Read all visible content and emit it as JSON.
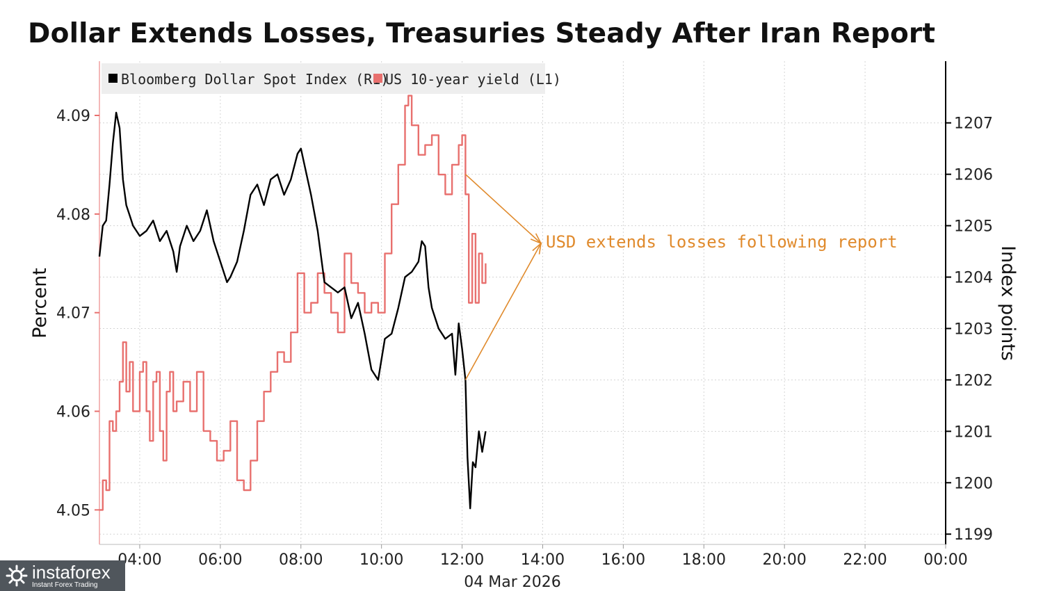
{
  "title": "Dollar Extends Losses, Treasuries Steady After Iran Report",
  "watermark": {
    "name": "instaforex",
    "tagline": "Instant Forex Trading"
  },
  "chart_data": {
    "type": "line",
    "title": "Dollar Extends Losses, Treasuries Steady After Iran Report",
    "xlabel": "04 Mar 2026",
    "x_ticks": [
      "04:00",
      "06:00",
      "08:00",
      "10:00",
      "12:00",
      "14:00",
      "16:00",
      "18:00",
      "20:00",
      "22:00",
      "00:00"
    ],
    "x_range": [
      "03:00",
      "00:00"
    ],
    "left_axis": {
      "label": "Percent",
      "ticks": [
        "4.05",
        "4.06",
        "4.07",
        "4.08",
        "4.09"
      ],
      "range": [
        4.0465,
        4.0955
      ]
    },
    "right_axis": {
      "label": "Index points",
      "ticks": [
        "1199",
        "1200",
        "1201",
        "1202",
        "1203",
        "1204",
        "1205",
        "1206",
        "1207"
      ],
      "range": [
        1198.8,
        1208.2
      ]
    },
    "grid": true,
    "legend_position": "top-left",
    "series": [
      {
        "name": "Bloomberg Dollar Spot Index (R1)",
        "axis": "right",
        "color": "#000000",
        "points": [
          [
            "03:00",
            1204.4
          ],
          [
            "03:05",
            1205.0
          ],
          [
            "03:10",
            1205.1
          ],
          [
            "03:15",
            1205.8
          ],
          [
            "03:20",
            1206.6
          ],
          [
            "03:25",
            1207.2
          ],
          [
            "03:30",
            1206.9
          ],
          [
            "03:35",
            1205.9
          ],
          [
            "03:40",
            1205.4
          ],
          [
            "03:45",
            1205.2
          ],
          [
            "03:50",
            1205.0
          ],
          [
            "04:00",
            1204.8
          ],
          [
            "04:10",
            1204.9
          ],
          [
            "04:20",
            1205.1
          ],
          [
            "04:30",
            1204.7
          ],
          [
            "04:40",
            1204.9
          ],
          [
            "04:50",
            1204.5
          ],
          [
            "04:55",
            1204.1
          ],
          [
            "05:00",
            1204.6
          ],
          [
            "05:10",
            1205.0
          ],
          [
            "05:20",
            1204.7
          ],
          [
            "05:30",
            1204.9
          ],
          [
            "05:40",
            1205.3
          ],
          [
            "05:50",
            1204.7
          ],
          [
            "06:00",
            1204.3
          ],
          [
            "06:10",
            1203.9
          ],
          [
            "06:15",
            1204.0
          ],
          [
            "06:25",
            1204.3
          ],
          [
            "06:35",
            1204.9
          ],
          [
            "06:45",
            1205.6
          ],
          [
            "06:55",
            1205.8
          ],
          [
            "07:05",
            1205.4
          ],
          [
            "07:15",
            1205.9
          ],
          [
            "07:25",
            1206.0
          ],
          [
            "07:35",
            1205.6
          ],
          [
            "07:45",
            1205.9
          ],
          [
            "07:55",
            1206.4
          ],
          [
            "08:00",
            1206.5
          ],
          [
            "08:05",
            1206.2
          ],
          [
            "08:15",
            1205.6
          ],
          [
            "08:25",
            1204.9
          ],
          [
            "08:35",
            1203.9
          ],
          [
            "08:45",
            1203.8
          ],
          [
            "08:55",
            1203.7
          ],
          [
            "09:05",
            1203.8
          ],
          [
            "09:15",
            1203.2
          ],
          [
            "09:25",
            1203.5
          ],
          [
            "09:35",
            1202.9
          ],
          [
            "09:45",
            1202.2
          ],
          [
            "09:55",
            1202.0
          ],
          [
            "10:05",
            1202.8
          ],
          [
            "10:15",
            1202.9
          ],
          [
            "10:25",
            1203.4
          ],
          [
            "10:35",
            1204.0
          ],
          [
            "10:45",
            1204.1
          ],
          [
            "10:55",
            1204.3
          ],
          [
            "11:00",
            1204.7
          ],
          [
            "11:05",
            1204.6
          ],
          [
            "11:10",
            1203.8
          ],
          [
            "11:15",
            1203.4
          ],
          [
            "11:25",
            1203.0
          ],
          [
            "11:35",
            1202.8
          ],
          [
            "11:45",
            1202.9
          ],
          [
            "11:50",
            1202.1
          ],
          [
            "11:55",
            1203.1
          ],
          [
            "12:00",
            1202.6
          ],
          [
            "12:05",
            1202.0
          ],
          [
            "12:08",
            1200.5
          ],
          [
            "12:12",
            1199.5
          ],
          [
            "12:16",
            1200.4
          ],
          [
            "12:20",
            1200.3
          ],
          [
            "12:25",
            1201.0
          ],
          [
            "12:30",
            1200.6
          ],
          [
            "12:35",
            1201.0
          ]
        ]
      },
      {
        "name": "US 10-year yield (L1)",
        "axis": "left",
        "color": "#e8706e",
        "points": [
          [
            "03:00",
            4.05
          ],
          [
            "03:05",
            4.053
          ],
          [
            "03:10",
            4.052
          ],
          [
            "03:15",
            4.059
          ],
          [
            "03:20",
            4.058
          ],
          [
            "03:25",
            4.06
          ],
          [
            "03:30",
            4.063
          ],
          [
            "03:35",
            4.067
          ],
          [
            "03:40",
            4.062
          ],
          [
            "03:45",
            4.065
          ],
          [
            "03:50",
            4.06
          ],
          [
            "04:00",
            4.064
          ],
          [
            "04:05",
            4.065
          ],
          [
            "04:10",
            4.06
          ],
          [
            "04:15",
            4.057
          ],
          [
            "04:20",
            4.063
          ],
          [
            "04:25",
            4.064
          ],
          [
            "04:30",
            4.058
          ],
          [
            "04:35",
            4.055
          ],
          [
            "04:40",
            4.062
          ],
          [
            "04:45",
            4.064
          ],
          [
            "04:50",
            4.06
          ],
          [
            "04:55",
            4.061
          ],
          [
            "05:05",
            4.063
          ],
          [
            "05:15",
            4.06
          ],
          [
            "05:25",
            4.064
          ],
          [
            "05:35",
            4.058
          ],
          [
            "05:45",
            4.057
          ],
          [
            "05:55",
            4.055
          ],
          [
            "06:05",
            4.056
          ],
          [
            "06:15",
            4.059
          ],
          [
            "06:25",
            4.053
          ],
          [
            "06:35",
            4.052
          ],
          [
            "06:45",
            4.055
          ],
          [
            "06:55",
            4.059
          ],
          [
            "07:05",
            4.062
          ],
          [
            "07:15",
            4.064
          ],
          [
            "07:25",
            4.066
          ],
          [
            "07:35",
            4.065
          ],
          [
            "07:45",
            4.068
          ],
          [
            "07:55",
            4.074
          ],
          [
            "08:05",
            4.07
          ],
          [
            "08:15",
            4.071
          ],
          [
            "08:25",
            4.074
          ],
          [
            "08:35",
            4.072
          ],
          [
            "08:45",
            4.07
          ],
          [
            "08:55",
            4.068
          ],
          [
            "09:05",
            4.076
          ],
          [
            "09:15",
            4.073
          ],
          [
            "09:25",
            4.072
          ],
          [
            "09:35",
            4.07
          ],
          [
            "09:45",
            4.071
          ],
          [
            "09:55",
            4.07
          ],
          [
            "10:05",
            4.076
          ],
          [
            "10:15",
            4.081
          ],
          [
            "10:25",
            4.085
          ],
          [
            "10:35",
            4.091
          ],
          [
            "10:40",
            4.092
          ],
          [
            "10:45",
            4.089
          ],
          [
            "10:55",
            4.086
          ],
          [
            "11:05",
            4.087
          ],
          [
            "11:15",
            4.088
          ],
          [
            "11:25",
            4.084
          ],
          [
            "11:35",
            4.082
          ],
          [
            "11:45",
            4.085
          ],
          [
            "11:55",
            4.087
          ],
          [
            "12:00",
            4.088
          ],
          [
            "12:05",
            4.082
          ],
          [
            "12:10",
            4.071
          ],
          [
            "12:15",
            4.078
          ],
          [
            "12:20",
            4.071
          ],
          [
            "12:25",
            4.076
          ],
          [
            "12:30",
            4.073
          ],
          [
            "12:35",
            4.075
          ]
        ]
      }
    ],
    "annotations": [
      {
        "text": "USD extends losses following report",
        "color": "#e08a2c"
      }
    ]
  }
}
